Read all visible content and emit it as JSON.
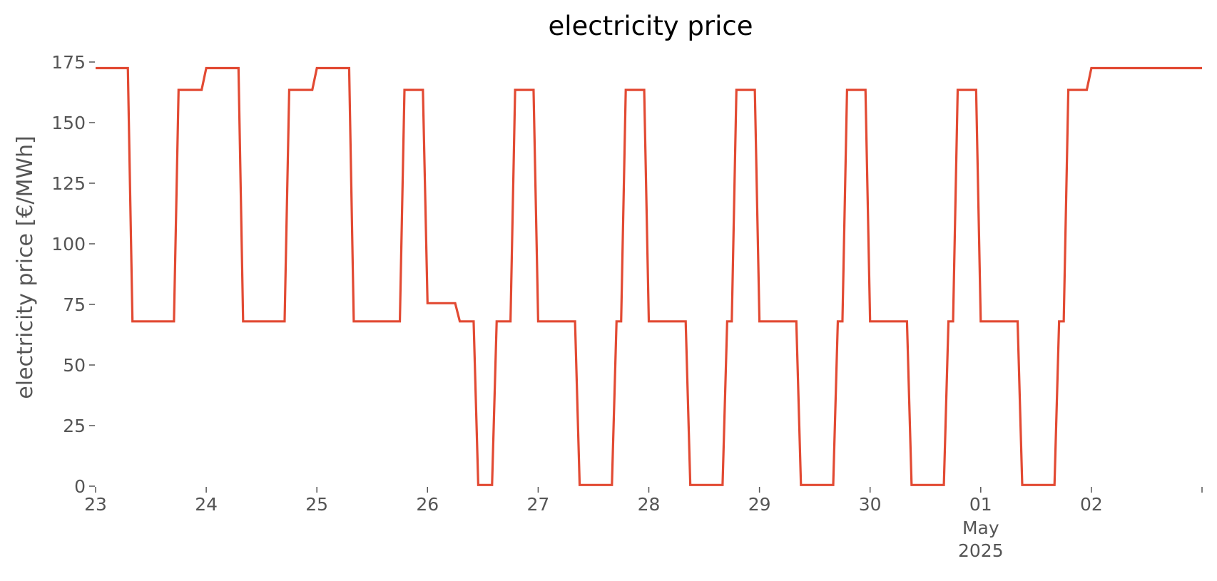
{
  "chart_data": {
    "type": "line",
    "title": "electricity price",
    "xlabel": "",
    "ylabel": "electricity price [€/MWh]",
    "ylim": [
      0,
      175
    ],
    "xlim": [
      "2025-04-23 00:00",
      "2025-05-02 24:00"
    ],
    "grid": false,
    "y_ticks": [
      0,
      25,
      50,
      75,
      100,
      125,
      150,
      175
    ],
    "x_ticks": [
      {
        "date": "2025-04-23",
        "label": "23"
      },
      {
        "date": "2025-04-24",
        "label": "24"
      },
      {
        "date": "2025-04-25",
        "label": "25"
      },
      {
        "date": "2025-04-26",
        "label": "26"
      },
      {
        "date": "2025-04-27",
        "label": "27"
      },
      {
        "date": "2025-04-28",
        "label": "28"
      },
      {
        "date": "2025-04-29",
        "label": "29"
      },
      {
        "date": "2025-04-30",
        "label": "30"
      },
      {
        "date": "2025-05-01",
        "label": "01"
      },
      {
        "date": "2025-05-02",
        "label": "02"
      },
      {
        "date": "2025-05-03",
        "label": ""
      }
    ],
    "x_sub_labels": {
      "date": "2025-05-01",
      "lines": [
        "May",
        "2025"
      ]
    },
    "color": "#e24a33",
    "series": [
      {
        "x": [
          "2025-04-23 00:00",
          "2025-04-23 07:00",
          "2025-04-23 08:00",
          "2025-04-23 17:00",
          "2025-04-23 18:00",
          "2025-04-23 23:00",
          "2025-04-24 00:00",
          "2025-04-24 07:00",
          "2025-04-24 08:00",
          "2025-04-24 17:00",
          "2025-04-24 18:00",
          "2025-04-24 23:00",
          "2025-04-25 00:00",
          "2025-04-25 07:00",
          "2025-04-25 08:00",
          "2025-04-25 18:00",
          "2025-04-25 19:00",
          "2025-04-25 23:00",
          "2025-04-26 00:00",
          "2025-04-26 06:00",
          "2025-04-26 07:00",
          "2025-04-26 10:00",
          "2025-04-26 11:00",
          "2025-04-26 14:00",
          "2025-04-26 15:00",
          "2025-04-26 18:00",
          "2025-04-26 19:00",
          "2025-04-26 23:00",
          "2025-04-27 00:00",
          "2025-04-27 08:00",
          "2025-04-27 09:00",
          "2025-04-27 16:00",
          "2025-04-27 17:00",
          "2025-04-27 18:00",
          "2025-04-27 19:00",
          "2025-04-27 23:00",
          "2025-04-28 00:00",
          "2025-04-28 08:00",
          "2025-04-28 09:00",
          "2025-04-28 16:00",
          "2025-04-28 17:00",
          "2025-04-28 18:00",
          "2025-04-28 19:00",
          "2025-04-28 23:00",
          "2025-04-29 00:00",
          "2025-04-29 08:00",
          "2025-04-29 09:00",
          "2025-04-29 16:00",
          "2025-04-29 17:00",
          "2025-04-29 18:00",
          "2025-04-29 19:00",
          "2025-04-29 23:00",
          "2025-04-30 00:00",
          "2025-04-30 08:00",
          "2025-04-30 09:00",
          "2025-04-30 16:00",
          "2025-04-30 17:00",
          "2025-04-30 18:00",
          "2025-04-30 19:00",
          "2025-04-30 23:00",
          "2025-05-01 00:00",
          "2025-05-01 08:00",
          "2025-05-01 09:00",
          "2025-05-01 16:00",
          "2025-05-01 17:00",
          "2025-05-01 18:00",
          "2025-05-01 19:00",
          "2025-05-01 23:00",
          "2025-05-02 00:00",
          "2025-05-02 24:00"
        ],
        "values": [
          172.5,
          172.5,
          68,
          68,
          163.5,
          163.5,
          172.5,
          172.5,
          68,
          68,
          163.5,
          163.5,
          172.5,
          172.5,
          68,
          68,
          163.5,
          163.5,
          75.5,
          75.5,
          68,
          68,
          0.5,
          0.5,
          68,
          68,
          163.5,
          163.5,
          68,
          68,
          0.5,
          0.5,
          68,
          68,
          163.5,
          163.5,
          68,
          68,
          0.5,
          0.5,
          68,
          68,
          163.5,
          163.5,
          68,
          68,
          0.5,
          0.5,
          68,
          68,
          163.5,
          163.5,
          68,
          68,
          0.5,
          0.5,
          68,
          68,
          163.5,
          163.5,
          68,
          68,
          0.5,
          0.5,
          68,
          68,
          163.5,
          163.5,
          172.5,
          172.5
        ]
      }
    ]
  }
}
